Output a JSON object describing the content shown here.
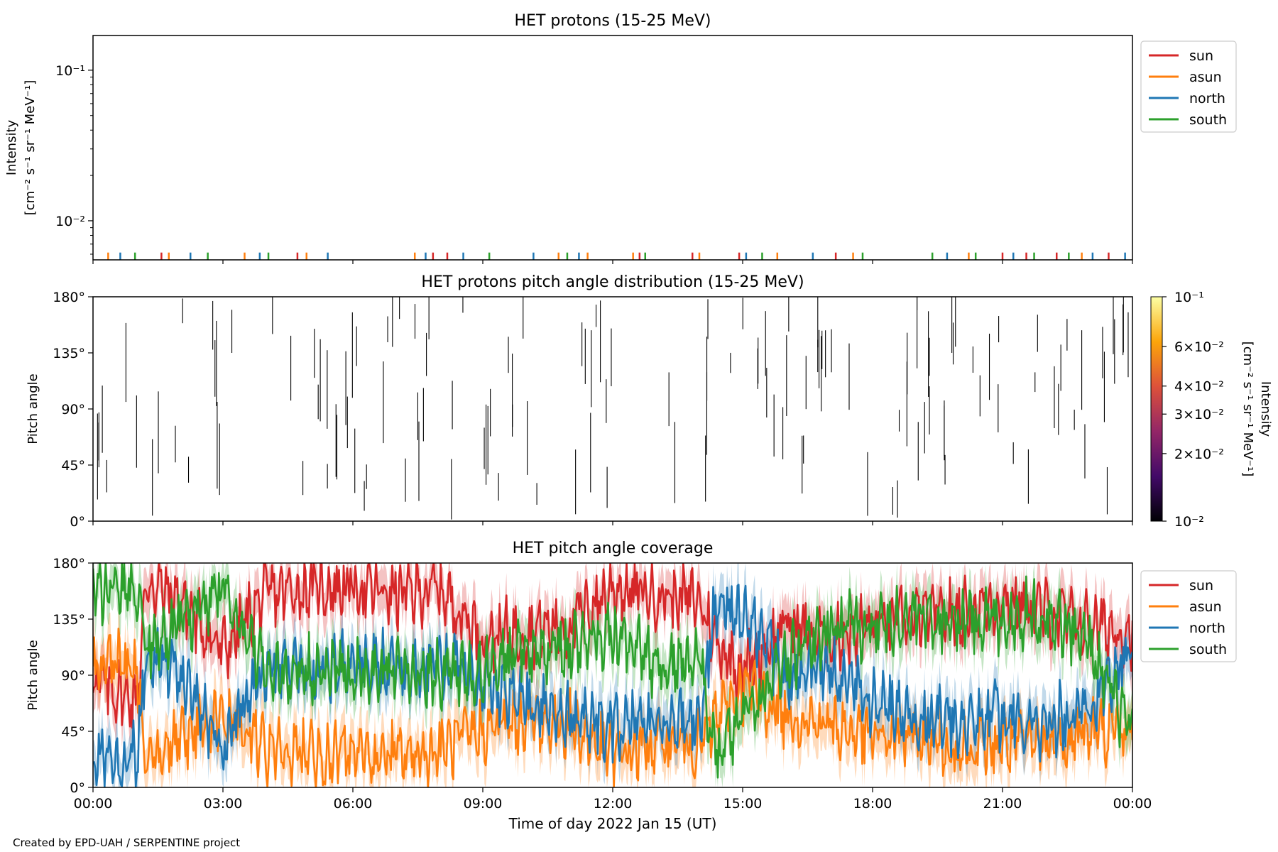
{
  "chart_data": [
    {
      "type": "line",
      "title": "HET protons (15-25 MeV)",
      "ylabel": [
        "Intensity",
        "[cm⁻² s⁻¹ sr⁻¹ MeV⁻¹]"
      ],
      "yscale": "log",
      "ylim": [
        0.0055,
        0.17
      ],
      "yticks": [
        {
          "value": 0.01,
          "label": "10⁻²"
        },
        {
          "value": 0.1,
          "label": "10⁻¹"
        }
      ],
      "legend_position": "right",
      "series": [
        {
          "name": "sun",
          "color": "#d62728",
          "events_h": [
            1.58,
            4.72,
            7.85,
            8.18,
            12.62,
            13.84,
            14.92,
            17.15,
            21.0,
            21.55,
            22.25,
            23.45
          ],
          "values_note": "spikes near 0.0057"
        },
        {
          "name": "asun",
          "color": "#ff7f0e",
          "events_h": [
            0.35,
            1.75,
            3.5,
            4.93,
            7.43,
            10.75,
            11.42,
            12.47,
            14.0,
            15.8,
            17.55,
            20.22,
            22.83
          ],
          "values_note": "spikes near 0.0057"
        },
        {
          "name": "north",
          "color": "#1f77b4",
          "events_h": [
            0.63,
            2.25,
            3.85,
            5.42,
            7.68,
            8.55,
            10.17,
            11.22,
            15.08,
            16.62,
            19.72,
            21.25,
            23.08,
            23.83
          ],
          "values_note": "spikes near 0.0057"
        },
        {
          "name": "south",
          "color": "#2ca02c",
          "events_h": [
            0.97,
            2.65,
            4.05,
            9.15,
            10.95,
            12.75,
            15.45,
            17.77,
            19.38,
            20.38,
            21.73,
            22.53
          ],
          "values_note": "spikes near 0.0057"
        }
      ]
    },
    {
      "type": "heatmap",
      "title": "HET protons pitch angle distribution (15-25 MeV)",
      "ylabel": "Pitch angle",
      "ylim": [
        0,
        180
      ],
      "yticks": [
        "0°",
        "45°",
        "90°",
        "135°",
        "180°"
      ],
      "colorbar": {
        "label": [
          "Intensity",
          "[cm⁻² s⁻¹ sr⁻¹ MeV⁻¹]"
        ],
        "scale": "log",
        "range": [
          0.01,
          0.1
        ],
        "ticks": [
          {
            "value": 0.01,
            "label": "10⁻²"
          },
          {
            "value": 0.02,
            "label": "2×10⁻²"
          },
          {
            "value": 0.03,
            "label": "3×10⁻²"
          },
          {
            "value": 0.04,
            "label": "4×10⁻²"
          },
          {
            "value": 0.06,
            "label": "6×10⁻²"
          },
          {
            "value": 0.1,
            "label": "10⁻¹"
          }
        ],
        "colors": [
          "#000004",
          "#420a68",
          "#932667",
          "#dd513a",
          "#fca50a",
          "#fcffa4"
        ]
      },
      "note": "sparse thin vertical strokes at ~0.01 intensity between 0° and 180°"
    },
    {
      "type": "area",
      "title": "HET pitch angle coverage",
      "ylabel": "Pitch angle",
      "xlabel": "Time of day 2022 Jan 15 (UT)",
      "ylim": [
        0,
        180
      ],
      "yticks": [
        "0°",
        "45°",
        "90°",
        "135°",
        "180°"
      ],
      "legend_position": "right",
      "x_hours": [
        0,
        1,
        1.25,
        2,
        3,
        4,
        5,
        6,
        7,
        8,
        9,
        10,
        11,
        12,
        13,
        14,
        14.4,
        15,
        16,
        17,
        18,
        19,
        20,
        21,
        22,
        23,
        24
      ],
      "series": [
        {
          "name": "sun",
          "color": "#d62728",
          "values": [
            85,
            70,
            165,
            150,
            110,
            155,
            160,
            160,
            155,
            160,
            120,
            125,
            130,
            160,
            155,
            150,
            115,
            95,
            130,
            120,
            130,
            135,
            140,
            150,
            140,
            130,
            125
          ]
        },
        {
          "name": "asun",
          "color": "#ff7f0e",
          "values": [
            100,
            95,
            20,
            35,
            60,
            30,
            25,
            25,
            25,
            30,
            45,
            55,
            50,
            25,
            35,
            35,
            55,
            80,
            60,
            50,
            40,
            40,
            30,
            35,
            35,
            45,
            45
          ]
        },
        {
          "name": "north",
          "color": "#1f77b4",
          "values": [
            25,
            25,
            110,
            90,
            30,
            100,
            95,
            100,
            95,
            100,
            85,
            70,
            55,
            50,
            50,
            55,
            150,
            140,
            90,
            95,
            70,
            60,
            50,
            60,
            50,
            65,
            110
          ]
        },
        {
          "name": "south",
          "color": "#2ca02c",
          "values": [
            155,
            160,
            110,
            130,
            160,
            90,
            95,
            90,
            95,
            90,
            95,
            110,
            115,
            120,
            100,
            100,
            25,
            50,
            100,
            130,
            130,
            135,
            135,
            135,
            140,
            115,
            40
          ]
        }
      ]
    }
  ],
  "x_axis": {
    "range_hours": [
      0,
      24
    ],
    "tick_labels": [
      "00:00",
      "03:00",
      "06:00",
      "09:00",
      "12:00",
      "15:00",
      "18:00",
      "21:00",
      "00:00"
    ]
  },
  "footer": "Created by EPD-UAH / SERPENTINE project"
}
